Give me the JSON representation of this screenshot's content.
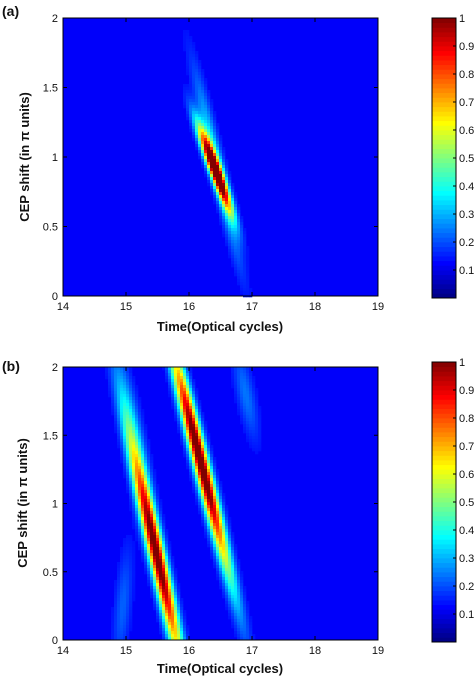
{
  "chart_data": [
    {
      "type": "heatmap",
      "panel_label": "(a)",
      "xlabel": "Time(Optical cycles)",
      "ylabel": "CEP shift (in π units)",
      "xlim": [
        14,
        19
      ],
      "ylim": [
        0,
        2
      ],
      "xticks": [
        "14",
        "15",
        "16",
        "17",
        "18",
        "19"
      ],
      "yticks": [
        "0",
        "0.5",
        "1",
        "1.5",
        "2"
      ],
      "colorbar": {
        "min": 0,
        "max": 1,
        "ticks": [
          "0.1",
          "0.2",
          "0.3",
          "0.4",
          "0.5",
          "0.6",
          "0.7",
          "0.8",
          "0.9",
          "1"
        ],
        "colormap": "jet"
      },
      "features": [
        {
          "x0": 16.25,
          "y0": 1.1,
          "x1": 16.55,
          "y1": 0.75,
          "peak": 1.0,
          "sigma_along": 0.55,
          "sigma_across": 0.05
        },
        {
          "x0": 16.1,
          "y0": 1.6,
          "x1": 16.8,
          "y1": 0.25,
          "peak": 0.25,
          "sigma_along": 1.0,
          "sigma_across": 0.07
        }
      ]
    },
    {
      "type": "heatmap",
      "panel_label": "(b)",
      "xlabel": "Time(Optical cycles)",
      "ylabel": "CEP shift (in π units)",
      "xlim": [
        14,
        19
      ],
      "ylim": [
        0,
        2
      ],
      "xticks": [
        "14",
        "15",
        "16",
        "17",
        "18",
        "19"
      ],
      "yticks": [
        "0",
        "0.5",
        "1",
        "1.5",
        "2"
      ],
      "colorbar": {
        "min": 0,
        "max": 1,
        "ticks": [
          "0.1",
          "0.2",
          "0.3",
          "0.4",
          "0.5",
          "0.6",
          "0.7",
          "0.8",
          "0.9",
          "1"
        ],
        "colormap": "jet"
      },
      "features": [
        {
          "x0": 15.15,
          "y0": 1.3,
          "x1": 15.8,
          "y1": 0.0,
          "peak": 0.95,
          "sigma_along": 1.3,
          "sigma_across": 0.08
        },
        {
          "x0": 15.8,
          "y0": 2.0,
          "x1": 16.55,
          "y1": 0.65,
          "peak": 1.0,
          "sigma_along": 1.35,
          "sigma_across": 0.075
        },
        {
          "x0": 14.9,
          "y0": 2.0,
          "x1": 15.3,
          "y1": 1.2,
          "peak": 0.15,
          "sigma_along": 0.8,
          "sigma_across": 0.09
        },
        {
          "x0": 16.8,
          "y0": 2.0,
          "x1": 17.0,
          "y1": 1.6,
          "peak": 0.12,
          "sigma_along": 0.5,
          "sigma_across": 0.09
        },
        {
          "x0": 15.0,
          "y0": 0.5,
          "x1": 14.9,
          "y1": 0.0,
          "peak": 0.1,
          "sigma_along": 0.6,
          "sigma_across": 0.09
        }
      ]
    }
  ]
}
